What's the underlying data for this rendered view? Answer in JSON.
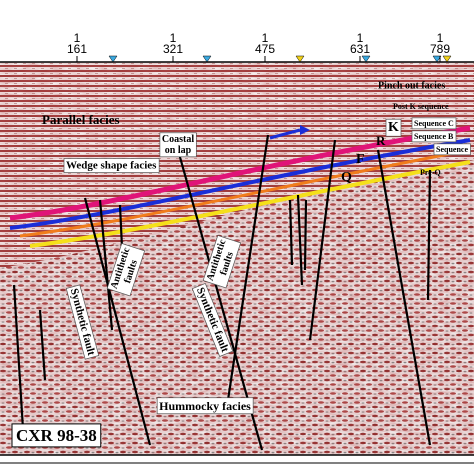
{
  "axis": {
    "traces": [
      {
        "top": "1",
        "bottom": "161"
      },
      {
        "top": "1",
        "bottom": "321"
      },
      {
        "top": "1",
        "bottom": "475"
      },
      {
        "top": "1",
        "bottom": "631"
      },
      {
        "top": "1",
        "bottom": "789"
      }
    ]
  },
  "labels": {
    "parallel_facies": "Parallel facies",
    "coastal_onlap": [
      "Coastal",
      "on lap"
    ],
    "wedge_shape_facies": "Wedge shape facies",
    "pinch_out_facies": "Pinch out facies",
    "post_k_sequence": "Post K sequence",
    "sequence_c": "Sequence C",
    "sequence_b": "Sequence B",
    "sequence_a": "Sequence",
    "pre_q": "Pre-Q",
    "horizon_k": "K",
    "horizon_r": "R",
    "horizon_f": "F",
    "horizon_q": "Q",
    "antithetic_faults_1": [
      "Antithetic",
      "faults"
    ],
    "antithetic_faults_2": [
      "Antithetic",
      "faults"
    ],
    "synthetic_fault_1": "Synthetic fault",
    "synthetic_fault_2": "Synthetic fault",
    "hummocky_facies": "Hummocky facies"
  },
  "title": "CXR 98-38"
}
